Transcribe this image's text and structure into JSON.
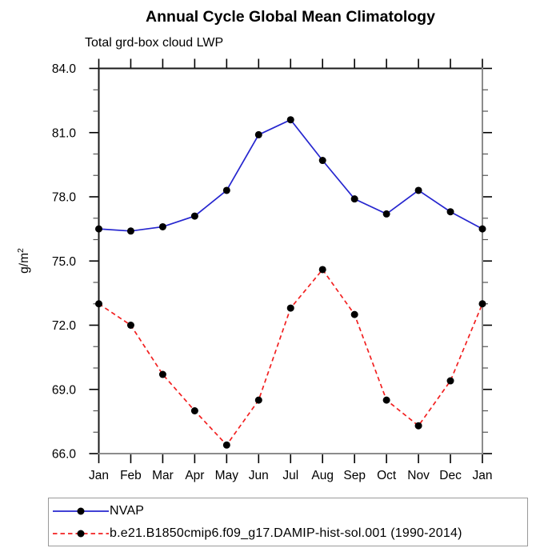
{
  "chart_data": {
    "type": "line",
    "title": "Annual Cycle Global Mean Climatology",
    "subtitle": "Total grd-box cloud LWP",
    "ylabel": "g/m^2",
    "ylabel_base": "g/m",
    "ylabel_exp": "2",
    "categories": [
      "Jan",
      "Feb",
      "Mar",
      "Apr",
      "May",
      "Jun",
      "Jul",
      "Aug",
      "Sep",
      "Oct",
      "Nov",
      "Dec",
      "Jan"
    ],
    "ylim": [
      66.0,
      84.0
    ],
    "ytick_major_step": 3.0,
    "ytick_minor_step": 1.0,
    "y_tick_labels": [
      "84.0",
      "81.0",
      "78.0",
      "75.0",
      "72.0",
      "69.0",
      "66.0"
    ],
    "grid": false,
    "legend_position": "bottom",
    "series": [
      {
        "name": "NVAP",
        "color": "#2626cf",
        "line_style": "solid",
        "marker": "filled-circle",
        "marker_color": "#000000",
        "values": [
          76.5,
          76.4,
          76.6,
          77.1,
          78.3,
          80.9,
          81.6,
          79.7,
          77.9,
          77.2,
          78.3,
          77.3,
          76.5
        ]
      },
      {
        "name": "b.e21.B1850cmip6.f09_g17.DAMIP-hist-sol.001 (1990-2014)",
        "color": "#f22020",
        "line_style": "dashed",
        "marker": "filled-circle",
        "marker_color": "#000000",
        "values": [
          73.0,
          72.0,
          69.7,
          68.0,
          66.4,
          68.5,
          72.8,
          74.6,
          72.5,
          68.5,
          67.3,
          69.4,
          73.0
        ]
      }
    ],
    "colors": {
      "frame_dark": "#1a1a1a",
      "frame_light": "#8c8c8c",
      "tick": "#000000",
      "minor_tick": "#555555",
      "background": "#ffffff"
    }
  }
}
